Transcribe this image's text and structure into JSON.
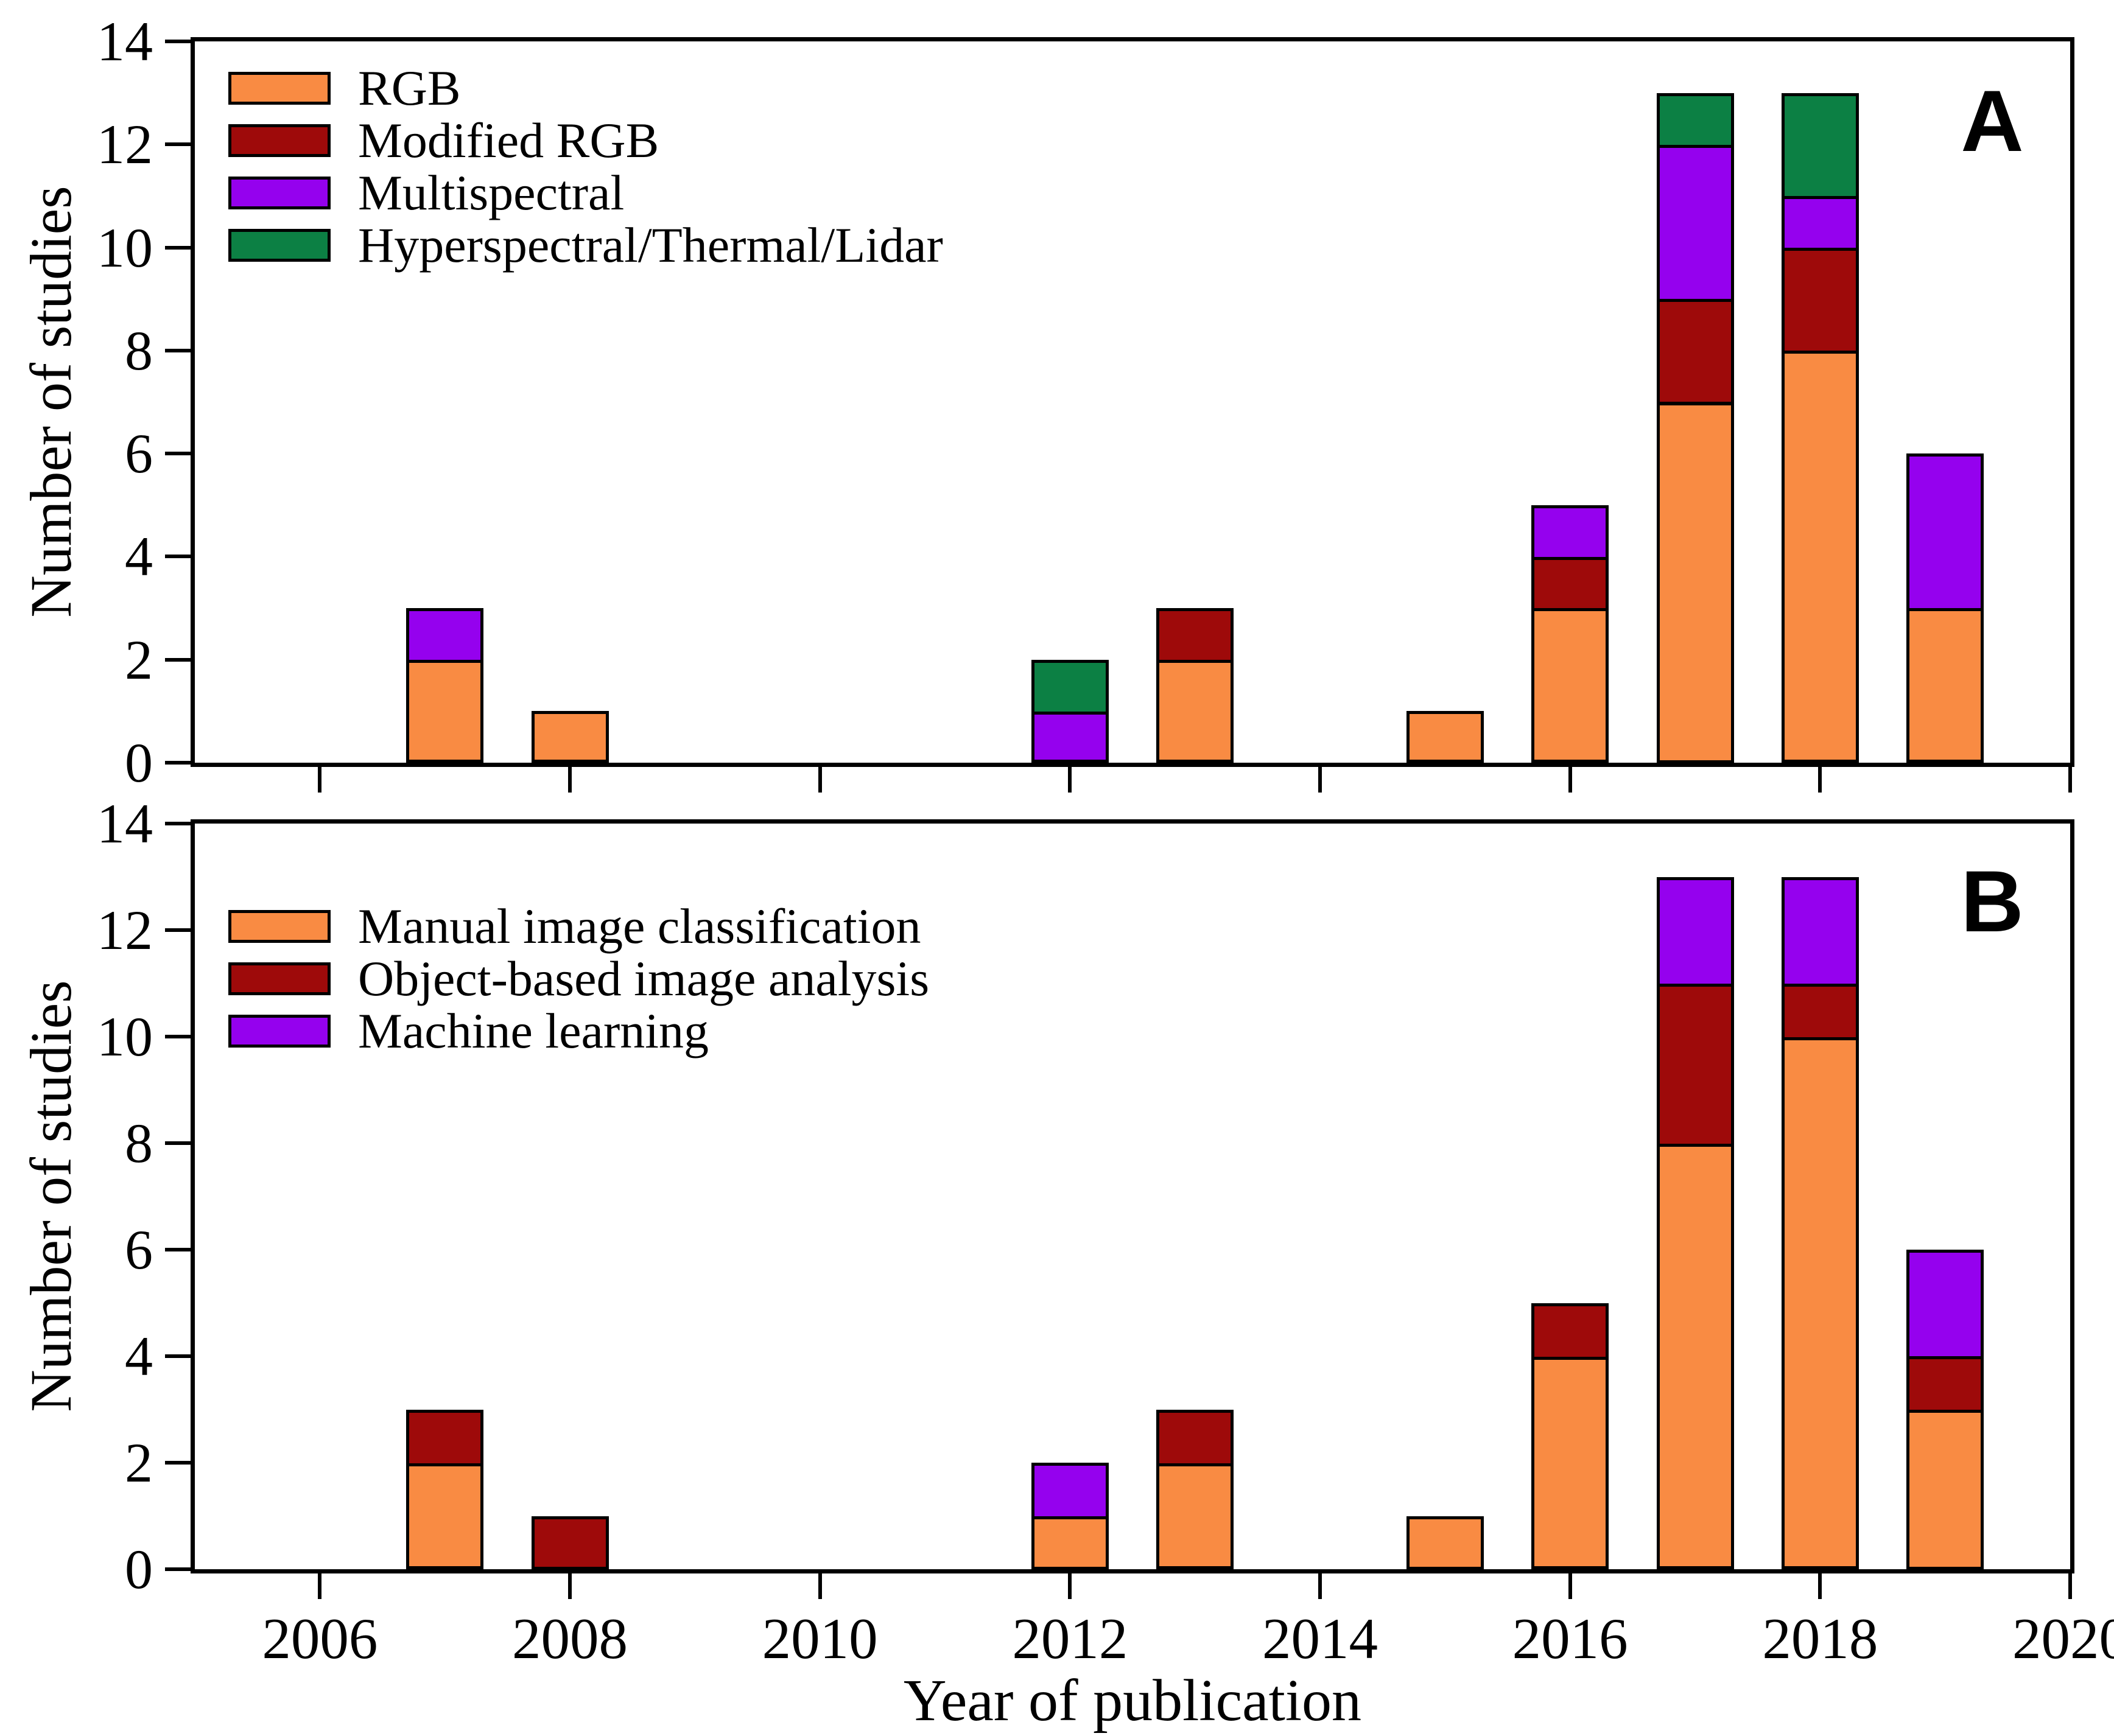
{
  "figure": {
    "xlabel": "Year of publication",
    "panels": [
      {
        "letter": "A",
        "ylabel": "Number of studies"
      },
      {
        "letter": "B",
        "ylabel": "Number of studies"
      }
    ]
  },
  "chart_data": [
    {
      "type": "bar",
      "stacked": true,
      "panel": "A",
      "xlabel": "Year of publication",
      "ylabel": "Number of studies",
      "x": [
        2007,
        2008,
        2012,
        2013,
        2015,
        2016,
        2017,
        2018,
        2019
      ],
      "series": [
        {
          "name": "RGB",
          "color": "#F98B43",
          "values": [
            2,
            1,
            0,
            2,
            1,
            3,
            7,
            8,
            3
          ]
        },
        {
          "name": "Modified RGB",
          "color": "#9E0A0A",
          "values": [
            0,
            0,
            0,
            1,
            0,
            1,
            2,
            2,
            0
          ]
        },
        {
          "name": "Multispectral",
          "color": "#9501EE",
          "values": [
            1,
            0,
            1,
            0,
            0,
            1,
            3,
            1,
            3
          ]
        },
        {
          "name": "Hyperspectral/Thermal/Lidar",
          "color": "#0C8044",
          "values": [
            0,
            0,
            1,
            0,
            0,
            0,
            1,
            2,
            0
          ]
        }
      ],
      "xlim": [
        2005,
        2020
      ],
      "ylim": [
        0,
        14
      ],
      "xticks": [
        2006,
        2008,
        2010,
        2012,
        2014,
        2016,
        2018,
        2020
      ],
      "yticks": [
        0,
        2,
        4,
        6,
        8,
        10,
        12,
        14
      ],
      "bar_width_years": 0.62,
      "legend_position": "upper-left",
      "grid": false
    },
    {
      "type": "bar",
      "stacked": true,
      "panel": "B",
      "xlabel": "Year of publication",
      "ylabel": "Number of studies",
      "x": [
        2007,
        2008,
        2012,
        2013,
        2015,
        2016,
        2017,
        2018,
        2019
      ],
      "series": [
        {
          "name": "Manual image classification",
          "color": "#F98B43",
          "values": [
            2,
            0,
            1,
            2,
            1,
            4,
            8,
            10,
            3
          ]
        },
        {
          "name": "Object-based image analysis",
          "color": "#9E0A0A",
          "values": [
            1,
            1,
            0,
            1,
            0,
            1,
            3,
            1,
            1
          ]
        },
        {
          "name": "Machine learning",
          "color": "#9501EE",
          "values": [
            0,
            0,
            1,
            0,
            0,
            0,
            2,
            2,
            2
          ]
        }
      ],
      "xlim": [
        2005,
        2020
      ],
      "ylim": [
        0,
        14
      ],
      "xticks": [
        2006,
        2008,
        2010,
        2012,
        2014,
        2016,
        2018,
        2020
      ],
      "yticks": [
        0,
        2,
        4,
        6,
        8,
        10,
        12,
        14
      ],
      "bar_width_years": 0.62,
      "legend_position": "upper-left",
      "grid": false
    }
  ]
}
